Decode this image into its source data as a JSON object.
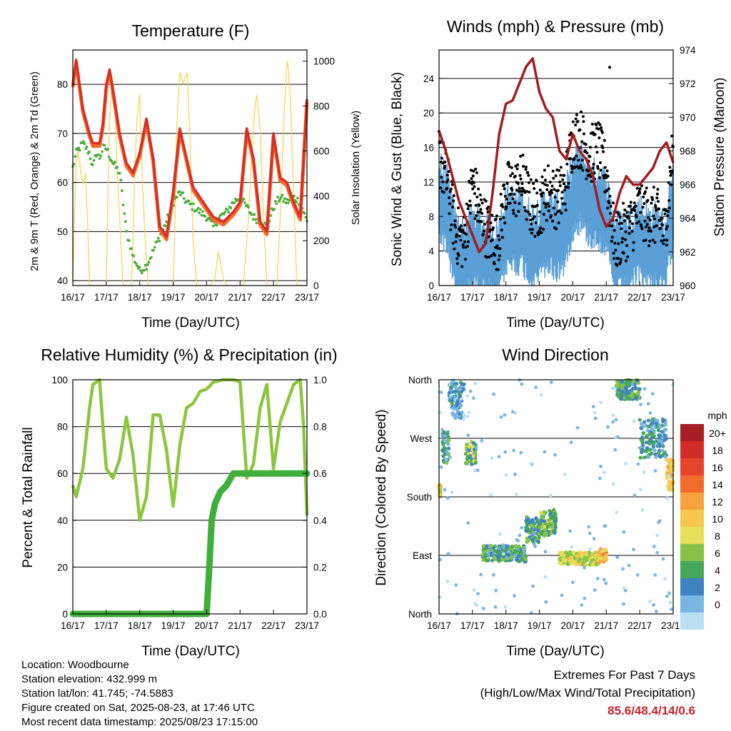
{
  "colors": {
    "red": "#d73027",
    "orange": "#f26b2a",
    "green": "#4aad3c",
    "yellow": "#f5d65a",
    "black": "#000000",
    "blue": "#5a9fd6",
    "maroon": "#a21d22",
    "rh": "#8cc63f",
    "precip": "#3fae3a"
  },
  "time_ticks": [
    "16/17",
    "17/17",
    "18/17",
    "19/17",
    "20/17",
    "21/17",
    "22/17",
    "23/17"
  ],
  "panels": {
    "temperature": {
      "title": "Temperature (F)",
      "xlabel": "Time (Day/UTC)",
      "ylabel_left": "2m & 9m T (Red, Orange) & 2m Td (Green)",
      "ylabel_right": "Solar Insolation (Yellow)",
      "yticks_left": [
        "40",
        "50",
        "60",
        "70",
        "80"
      ],
      "yticks_right": [
        "0",
        "200",
        "400",
        "600",
        "800",
        "1000"
      ]
    },
    "winds": {
      "title": "Winds (mph) & Pressure (mb)",
      "xlabel": "Time (Day/UTC)",
      "ylabel_left": "Sonic Wind & Gust (Blue, Black)",
      "ylabel_right": "Station Pressure (Maroon)",
      "yticks_left": [
        "0",
        "4",
        "8",
        "12",
        "16",
        "20",
        "24"
      ],
      "yticks_right": [
        "960",
        "962",
        "964",
        "966",
        "968",
        "970",
        "972",
        "974"
      ]
    },
    "humidity": {
      "title": "Relative Humidity (%) & Precipitation (in)",
      "xlabel": "Time (Day/UTC)",
      "ylabel_left": "Percent & Total Rainfall",
      "yticks_left": [
        "0",
        "20",
        "40",
        "60",
        "80",
        "100"
      ],
      "yticks_right": [
        "0.0",
        "0.2",
        "0.4",
        "0.6",
        "0.8",
        "1.0"
      ]
    },
    "direction": {
      "title": "Wind Direction",
      "xlabel": "Time (Day/UTC)",
      "ylabel_left": "Direction (Colored By Speed)",
      "yticks_left": [
        "North",
        "East",
        "South",
        "West",
        "North"
      ],
      "legend_title": "mph",
      "legend_labels": [
        "20+",
        "18",
        "16",
        "14",
        "12",
        "10",
        "8",
        "6",
        "4",
        "2",
        "0"
      ],
      "legend_colors": [
        "#a71d24",
        "#d22b27",
        "#e8432c",
        "#f26b2a",
        "#f8a23d",
        "#f7c64e",
        "#e5e05a",
        "#86c24a",
        "#45a758",
        "#3f82c2",
        "#79b6e3",
        "#b9e0f4"
      ]
    }
  },
  "info": {
    "location": "Location: Woodbourne",
    "elevation": "Station elevation: 432.999 m",
    "latlon": "Station lat/lon: 41.745; -74.5883",
    "created": "Figure created on Sat, 2025-08-23, at 17:46 UTC",
    "recent": "Most recent data timestamp: 2025/08/23 17:15:00"
  },
  "extremes": {
    "title": "Extremes For Past 7 Days",
    "subtitle": "(High/Low/Max Wind/Total Precipitation)",
    "values": "85.6/48.4/14/0.6"
  },
  "chart_data": [
    {
      "type": "line",
      "title": "Temperature (F)",
      "xlabel": "Time (Day/UTC)",
      "ylabel": "2m & 9m T (Red, Orange) & 2m Td (Green)",
      "y2label": "Solar Insolation (Yellow)",
      "x_unit": "days since 16/17 UTC",
      "ylim": [
        39,
        87
      ],
      "y2lim": [
        0,
        1050
      ],
      "series": [
        {
          "name": "2m T",
          "axis": "left",
          "x": [
            0,
            0.1,
            0.3,
            0.5,
            0.6,
            0.8,
            0.9,
            1.0,
            1.1,
            1.2,
            1.4,
            1.6,
            1.8,
            2.0,
            2.2,
            2.4,
            2.6,
            2.8,
            3.0,
            3.2,
            3.4,
            3.6,
            3.8,
            4.0,
            4.2,
            4.5,
            4.8,
            5.0,
            5.2,
            5.4,
            5.6,
            5.8,
            6.0,
            6.2,
            6.4,
            6.6,
            6.8,
            6.9,
            7.0
          ],
          "y": [
            80,
            85,
            75,
            70,
            68,
            68,
            72,
            80,
            83,
            79,
            70,
            64,
            62,
            66,
            73,
            65,
            51,
            49,
            58,
            71,
            65,
            59,
            57,
            55,
            53,
            52,
            54,
            56,
            71,
            65,
            52,
            50,
            70,
            61,
            60,
            56,
            53,
            65,
            77
          ]
        },
        {
          "name": "2m Td",
          "axis": "left",
          "x": [
            0,
            0.1,
            0.2,
            0.3,
            0.5,
            0.6,
            0.7,
            0.8,
            0.9,
            1.0,
            1.2,
            1.4,
            1.6,
            1.8,
            2.0,
            2.2,
            2.4,
            2.6,
            2.8,
            3.0,
            3.2,
            3.4,
            3.6,
            3.8,
            4.0,
            4.2,
            4.4,
            4.6,
            4.8,
            5.0,
            5.2,
            5.4,
            5.6,
            5.8,
            6.0,
            6.2,
            6.4,
            6.6,
            6.8,
            7.0
          ],
          "y": [
            63,
            66,
            67,
            68,
            66,
            63,
            66,
            65,
            67,
            67,
            64,
            62,
            50,
            45,
            42,
            43,
            46,
            49,
            52,
            56,
            58,
            56,
            55,
            54,
            53,
            51,
            53,
            54,
            56,
            57,
            55,
            53,
            52,
            51,
            55,
            57,
            56,
            57,
            56,
            52
          ]
        },
        {
          "name": "Solar Insolation",
          "axis": "right",
          "x": [
            0,
            0.05,
            0.1,
            0.15,
            0.3,
            0.38,
            0.45,
            0.5,
            0.6,
            0.7,
            0.8,
            0.9,
            1.0,
            1.05,
            1.1,
            1.17,
            1.25,
            1.33,
            1.4,
            1.5,
            1.6,
            1.7,
            1.75,
            1.8,
            1.85,
            1.92,
            2.0,
            2.05,
            2.1,
            2.15,
            2.25,
            2.35,
            2.45,
            2.55,
            2.6,
            2.7,
            2.8,
            2.9,
            3.0,
            3.05,
            3.1,
            3.2,
            3.3,
            3.42,
            3.5,
            3.6,
            3.7,
            3.8,
            3.9,
            4.0,
            4.1,
            4.25,
            4.35,
            4.42,
            4.5,
            4.6,
            4.7,
            4.8,
            4.9,
            5.0,
            5.1,
            5.25,
            5.35,
            5.45,
            5.5,
            5.6,
            5.7,
            5.8,
            5.9,
            6.0,
            6.1,
            6.2,
            6.3,
            6.38,
            6.42,
            6.5,
            6.6,
            6.7,
            6.8,
            6.9,
            7.0
          ],
          "y": [
            0,
            300,
            550,
            600,
            450,
            500,
            250,
            0,
            0,
            0,
            0,
            0,
            0,
            400,
            750,
            900,
            850,
            500,
            300,
            0,
            0,
            0,
            0,
            200,
            500,
            750,
            850,
            600,
            400,
            250,
            0,
            0,
            0,
            0,
            0,
            0,
            0,
            0,
            0,
            250,
            700,
            950,
            900,
            950,
            650,
            200,
            0,
            0,
            0,
            0,
            0,
            30,
            150,
            100,
            30,
            0,
            0,
            0,
            0,
            0,
            0,
            300,
            600,
            800,
            850,
            700,
            300,
            0,
            0,
            0,
            0,
            300,
            700,
            950,
            1000,
            850,
            400,
            0,
            0,
            0,
            0
          ]
        }
      ]
    },
    {
      "type": "line",
      "title": "Winds (mph) & Pressure (mb)",
      "xlabel": "Time (Day/UTC)",
      "ylabel": "Sonic Wind & Gust (Blue, Black)",
      "y2label": "Station Pressure (Maroon)",
      "x_unit": "days since 16/17 UTC",
      "ylim": [
        0,
        27.3
      ],
      "y2lim": [
        960,
        974
      ],
      "series": [
        {
          "name": "Station Pressure",
          "axis": "right",
          "x": [
            0,
            0.2,
            0.4,
            0.6,
            0.8,
            1.0,
            1.2,
            1.4,
            1.6,
            1.8,
            2.0,
            2.2,
            2.4,
            2.6,
            2.8,
            3.0,
            3.2,
            3.4,
            3.6,
            3.8,
            4.0,
            4.2,
            4.4,
            4.6,
            4.8,
            5.0,
            5.2,
            5.4,
            5.6,
            5.8,
            6.0,
            6.2,
            6.4,
            6.6,
            6.8,
            7.0
          ],
          "y": [
            969.2,
            968.0,
            966.5,
            965.0,
            964.0,
            963.0,
            962.0,
            962.5,
            965.5,
            969.0,
            970.8,
            971.0,
            972.0,
            973.0,
            973.5,
            971.5,
            970.5,
            970.0,
            968.0,
            967.5,
            969.0,
            968.0,
            967.5,
            966.5,
            964.5,
            963.5,
            964.0,
            965.5,
            966.5,
            966.0,
            966.0,
            966.5,
            967.0,
            968.0,
            968.5,
            967.3
          ]
        },
        {
          "name": "Sonic Wind",
          "axis": "left",
          "x": [
            0,
            0.25,
            0.5,
            0.75,
            1.0,
            1.25,
            1.5,
            1.75,
            2.0,
            2.25,
            2.5,
            2.75,
            3.0,
            3.25,
            3.5,
            3.75,
            4.0,
            4.25,
            4.5,
            4.75,
            5.0,
            5.25,
            5.5,
            5.75,
            6.0,
            6.25,
            6.5,
            6.75,
            7.0
          ],
          "y": [
            10,
            8,
            3,
            2,
            4,
            3,
            3,
            2,
            6,
            6,
            6,
            4,
            5,
            6,
            5,
            6,
            10,
            11,
            9,
            9,
            8,
            3,
            3,
            4,
            5,
            4,
            4,
            3,
            9
          ]
        },
        {
          "name": "Gust",
          "axis": "left",
          "x": [
            0,
            0.25,
            0.5,
            0.75,
            1.0,
            1.25,
            1.5,
            1.75,
            2.0,
            2.25,
            2.5,
            2.75,
            3.0,
            3.25,
            3.5,
            3.75,
            4.0,
            4.25,
            4.5,
            4.75,
            5.0,
            5.25,
            5.5,
            5.75,
            6.0,
            6.25,
            6.5,
            6.75,
            7.0
          ],
          "y": [
            15,
            12,
            6,
            5,
            12,
            8,
            6,
            5,
            11,
            11,
            12,
            9,
            9,
            11,
            10,
            11,
            17,
            17,
            15,
            16,
            13,
            5,
            6,
            7,
            9,
            8,
            8,
            6,
            16
          ]
        }
      ]
    },
    {
      "type": "line",
      "title": "Relative Humidity (%) & Precipitation (in)",
      "xlabel": "Time (Day/UTC)",
      "ylabel": "Percent & Total Rainfall",
      "x_unit": "days since 16/17 UTC",
      "ylim": [
        0,
        100
      ],
      "y2lim": [
        0,
        1.0
      ],
      "series": [
        {
          "name": "Relative Humidity",
          "axis": "left",
          "x": [
            0,
            0.1,
            0.3,
            0.5,
            0.6,
            0.8,
            0.9,
            1.0,
            1.2,
            1.4,
            1.6,
            1.8,
            2.0,
            2.2,
            2.4,
            2.6,
            2.8,
            3.0,
            3.2,
            3.4,
            3.6,
            3.8,
            4.0,
            4.2,
            4.5,
            4.8,
            5.0,
            5.2,
            5.4,
            5.6,
            5.8,
            6.0,
            6.2,
            6.4,
            6.6,
            6.8,
            6.9,
            7.0
          ],
          "y": [
            55,
            50,
            62,
            88,
            98,
            100,
            80,
            62,
            58,
            66,
            84,
            68,
            40,
            50,
            85,
            85,
            70,
            46,
            72,
            88,
            90,
            95,
            96,
            99,
            100,
            100,
            99,
            58,
            64,
            88,
            98,
            62,
            82,
            90,
            98,
            100,
            80,
            42
          ]
        },
        {
          "name": "Total Precipitation",
          "axis": "right",
          "x": [
            0,
            4.0,
            4.08,
            4.15,
            4.25,
            4.4,
            4.6,
            4.8,
            5.0,
            7.0
          ],
          "y": [
            0,
            0,
            0.2,
            0.4,
            0.47,
            0.52,
            0.55,
            0.6,
            0.6,
            0.6
          ]
        }
      ]
    },
    {
      "type": "scatter",
      "title": "Wind Direction",
      "xlabel": "Time (Day/UTC)",
      "ylabel": "Direction (Colored By Speed)",
      "x_unit": "days since 16/17 UTC",
      "y_unit": "degrees (North=0/360, East=90, South=180, West=270)",
      "color_by": "speed (mph)",
      "clusters": [
        {
          "x": [
            0,
            0.05
          ],
          "y": [
            180,
            200
          ],
          "speed": 11
        },
        {
          "x": [
            0.1,
            0.3
          ],
          "y": [
            230,
            280
          ],
          "speed": 5
        },
        {
          "x": [
            0.3,
            0.75
          ],
          "y": [
            300,
            360
          ],
          "speed": 3
        },
        {
          "x": [
            0.8,
            1.1
          ],
          "y": [
            230,
            265
          ],
          "speed": 7
        },
        {
          "x": [
            1.3,
            2.6
          ],
          "y": [
            80,
            105
          ],
          "speed": 5
        },
        {
          "x": [
            2.6,
            3.0
          ],
          "y": [
            110,
            150
          ],
          "speed": 6
        },
        {
          "x": [
            3.0,
            3.5
          ],
          "y": [
            120,
            160
          ],
          "speed": 7
        },
        {
          "x": [
            3.6,
            4.8
          ],
          "y": [
            75,
            95
          ],
          "speed": 10
        },
        {
          "x": [
            4.8,
            5.0
          ],
          "y": [
            80,
            100
          ],
          "speed": 13
        },
        {
          "x": [
            5.3,
            6.0
          ],
          "y": [
            330,
            360
          ],
          "speed": 6
        },
        {
          "x": [
            6.0,
            6.8
          ],
          "y": [
            240,
            300
          ],
          "speed": 4
        },
        {
          "x": [
            6.8,
            7.0
          ],
          "y": [
            190,
            240
          ],
          "speed": 12
        }
      ]
    }
  ]
}
